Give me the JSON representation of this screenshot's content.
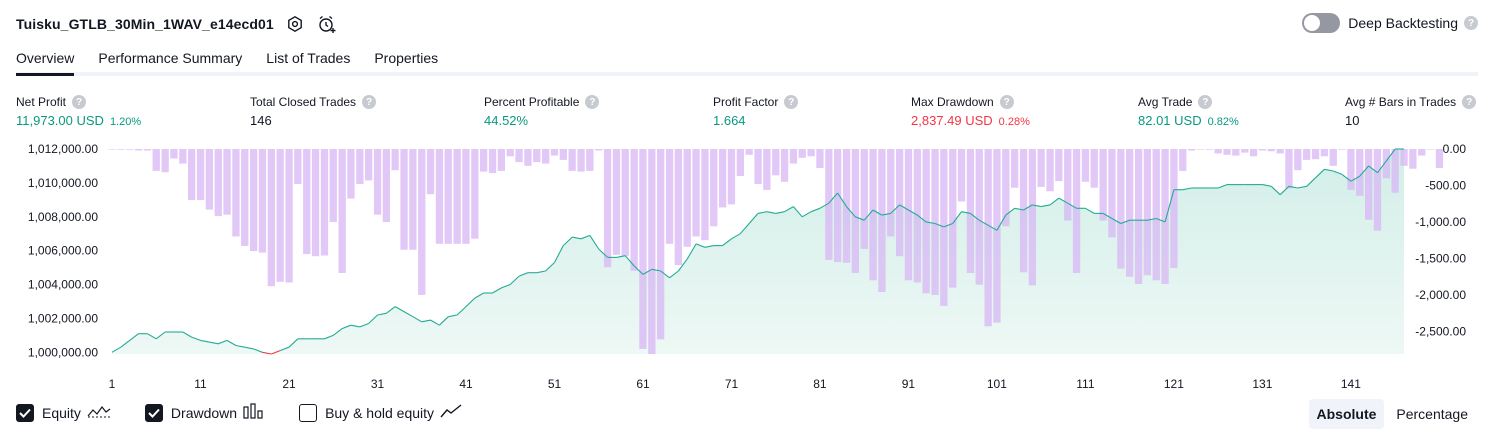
{
  "header": {
    "strategy_name": "Tuisku_GTLB_30Min_1WAV_e14ecd01",
    "deep_backtesting_label": "Deep Backtesting",
    "help_glyph": "?"
  },
  "tabs": [
    {
      "label": "Overview",
      "active": true
    },
    {
      "label": "Performance Summary",
      "active": false
    },
    {
      "label": "List of Trades",
      "active": false
    },
    {
      "label": "Properties",
      "active": false
    }
  ],
  "metrics": [
    {
      "label": "Net Profit",
      "value": "11,973.00 USD",
      "pct": "1.20%",
      "color": "green"
    },
    {
      "label": "Total Closed Trades",
      "value": "146",
      "pct": "",
      "color": "dark"
    },
    {
      "label": "Percent Profitable",
      "value": "44.52%",
      "pct": "",
      "color": "green"
    },
    {
      "label": "Profit Factor",
      "value": "1.664",
      "pct": "",
      "color": "green"
    },
    {
      "label": "Max Drawdown",
      "value": "2,837.49 USD",
      "pct": "0.28%",
      "color": "red"
    },
    {
      "label": "Avg Trade",
      "value": "82.01 USD",
      "pct": "0.82%",
      "color": "green"
    },
    {
      "label": "Avg # Bars in Trades",
      "value": "10",
      "pct": "",
      "color": "dark"
    }
  ],
  "legend": {
    "equity": {
      "label": "Equity",
      "checked": true
    },
    "drawdown": {
      "label": "Drawdown",
      "checked": true
    },
    "buyhold": {
      "label": "Buy & hold equity",
      "checked": false
    }
  },
  "mode": {
    "absolute": "Absolute",
    "percentage": "Percentage",
    "selected": "Absolute"
  },
  "colors": {
    "equity_line": "#22ab94",
    "equity_fill": "#d2eee8",
    "equity_line_negative": "#f23645",
    "drawdown_bar": "#d9b8f5",
    "positive": "#089981",
    "negative": "#f23645"
  },
  "chart_data": {
    "type": "area",
    "x_ticks": [
      "1",
      "11",
      "21",
      "31",
      "41",
      "51",
      "61",
      "71",
      "81",
      "91",
      "101",
      "111",
      "121",
      "131",
      "141"
    ],
    "y_left_ticks": [
      "1,012,000.00",
      "1,010,000.00",
      "1,008,000.00",
      "1,006,000.00",
      "1,004,000.00",
      "1,002,000.00",
      "1,000,000.00"
    ],
    "y_right_ticks": [
      "0.00",
      "-500.00",
      "-1,000.00",
      "-1,500.00",
      "-2,000.00",
      "-2,500.00"
    ],
    "y_left_range": [
      999900,
      1012000
    ],
    "y_right_range": [
      -2810,
      0
    ],
    "x_range": [
      1,
      147
    ],
    "series": [
      {
        "name": "Equity",
        "axis": "left",
        "values": [
          1000000,
          1000300,
          1000700,
          1001100,
          1001100,
          1000800,
          1001200,
          1001200,
          1001200,
          1000900,
          1000700,
          1000600,
          1000500,
          1000700,
          1000400,
          1000300,
          1000200,
          1000000,
          999900,
          1000100,
          1000300,
          1000800,
          1000800,
          1000800,
          1000800,
          1001000,
          1001400,
          1001600,
          1001500,
          1001700,
          1002200,
          1002300,
          1002700,
          1002400,
          1002100,
          1001800,
          1001900,
          1001600,
          1002100,
          1002200,
          1002700,
          1003200,
          1003500,
          1003500,
          1003800,
          1004000,
          1004500,
          1004700,
          1004700,
          1004800,
          1005300,
          1006300,
          1006800,
          1006700,
          1006900,
          1006100,
          1005600,
          1005600,
          1005700,
          1005100,
          1004600,
          1004900,
          1004800,
          1004400,
          1004800,
          1005500,
          1006400,
          1006200,
          1006300,
          1006300,
          1006700,
          1007000,
          1007600,
          1008200,
          1008300,
          1008200,
          1008300,
          1008600,
          1008000,
          1008300,
          1008500,
          1008800,
          1009400,
          1008600,
          1008000,
          1007800,
          1008400,
          1008100,
          1008200,
          1008700,
          1008400,
          1008100,
          1007700,
          1007600,
          1007400,
          1007600,
          1008300,
          1008200,
          1007800,
          1007500,
          1007200,
          1008100,
          1008500,
          1008400,
          1008700,
          1008600,
          1008700,
          1009100,
          1008800,
          1008500,
          1008500,
          1008200,
          1008200,
          1007900,
          1007600,
          1007800,
          1007800,
          1007800,
          1007900,
          1007700,
          1009600,
          1009600,
          1009700,
          1009700,
          1009700,
          1009700,
          1009900,
          1009900,
          1009900,
          1009900,
          1009900,
          1009800,
          1009300,
          1009800,
          1009700,
          1009800,
          1010300,
          1010800,
          1010700,
          1010500,
          1010100,
          1010400,
          1011000,
          1010600,
          1011300,
          1012000,
          1012000
        ]
      },
      {
        "name": "Drawdown",
        "axis": "right",
        "values": [
          0,
          -10,
          -10,
          -20,
          -20,
          -300,
          -320,
          -130,
          -200,
          -700,
          -700,
          -830,
          -920,
          -900,
          -1200,
          -1330,
          -1400,
          -1420,
          -1880,
          -1820,
          -1830,
          -480,
          -1440,
          -1470,
          -1460,
          -1000,
          -1700,
          -680,
          -480,
          -430,
          -900,
          -1000,
          -290,
          -1380,
          -1380,
          -2000,
          -620,
          -1300,
          -1300,
          -1300,
          -1300,
          -1230,
          -310,
          -330,
          -300,
          -100,
          -180,
          -230,
          -180,
          -200,
          -90,
          -150,
          -300,
          -310,
          -300,
          -20,
          -1620,
          -1450,
          -1470,
          -1670,
          -2740,
          -2810,
          -2610,
          -1300,
          -1590,
          -1340,
          -1200,
          -1250,
          -1060,
          -800,
          -760,
          -370,
          -80,
          -480,
          -560,
          -360,
          -450,
          -200,
          -120,
          -100,
          -260,
          -1520,
          -1550,
          -1560,
          -1700,
          -1370,
          -1800,
          -1960,
          -1200,
          -1470,
          -1800,
          -1830,
          -1980,
          -2000,
          -2150,
          -1900,
          -720,
          -1700,
          -1860,
          -2430,
          -2380,
          -1060,
          -530,
          -1690,
          -1870,
          -520,
          -580,
          -440,
          -980,
          -1700,
          -450,
          -530,
          -980,
          -1210,
          -1640,
          -1750,
          -1850,
          -1730,
          -1800,
          -1850,
          -1630,
          -300,
          -20,
          0,
          -10,
          -60,
          -80,
          -90,
          -50,
          -100,
          -20,
          -30,
          -60,
          -540,
          -290,
          -150,
          -140,
          -100,
          -230,
          -10,
          -560,
          -640,
          -970,
          -1120,
          -400,
          -600,
          -230,
          -270,
          -90,
          0,
          -260
        ]
      }
    ]
  }
}
